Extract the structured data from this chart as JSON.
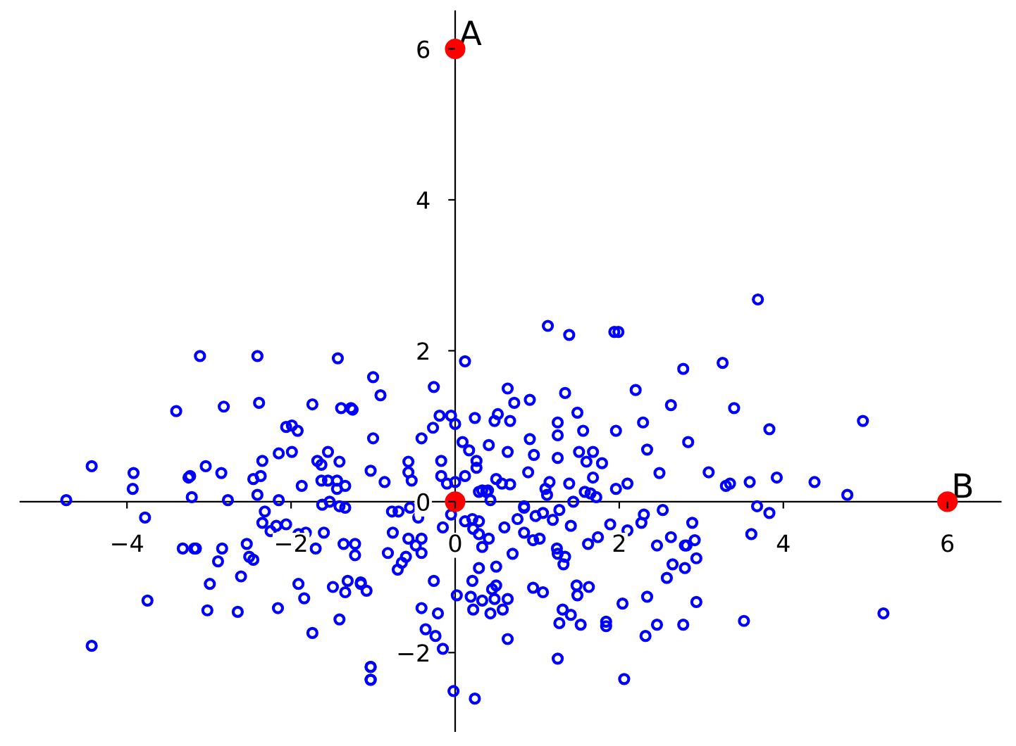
{
  "chart_data": {
    "type": "scatter",
    "xlim": [
      -5.3,
      6.65
    ],
    "ylim": [
      -3.04,
      6.5
    ],
    "xticks": [
      {
        "value": -4,
        "label": "−4"
      },
      {
        "value": -2,
        "label": "−2"
      },
      0,
      2,
      4,
      6
    ],
    "yticks": [
      {
        "value": -2,
        "label": "−2"
      },
      0,
      2,
      4,
      6
    ],
    "grid": false,
    "marker": "circle",
    "annotations": [
      {
        "text": "A",
        "x": 0,
        "y": 6
      },
      {
        "text": "B",
        "x": 6,
        "y": 0
      }
    ],
    "series": [
      {
        "color": "#0000ff",
        "x": [
          -4.74,
          -4.43,
          -3.92,
          -3.93,
          -3.78,
          -3.75,
          -4.43,
          -3.4,
          -3.25,
          -3.21,
          -3.32,
          -3.16,
          -3.11,
          -2.41,
          -1.43,
          -2.82,
          -2.39,
          -1.74,
          -1.39,
          -1.27,
          -2.06,
          -1.99,
          -1.92,
          -3.23,
          -3.04,
          -2.85,
          -2.46,
          -2.37,
          -2.35,
          -2.15,
          -1.99,
          -1.55,
          -2.41,
          -2.15,
          -1.87,
          -1.68,
          -1.63,
          -1.41,
          -1.63,
          -1.55,
          -1.44,
          -1.44,
          -1.34,
          -1.62,
          -1.53,
          -1.41,
          -1.34,
          -2.77,
          -3.18,
          -2.84,
          -2.89,
          -2.54,
          -2.51,
          -2.46,
          -2.99,
          -2.61,
          -3.02,
          -2.65,
          -2.16,
          -1.91,
          -1.84,
          -1.74,
          -1.41,
          -2.32,
          -2.35,
          -2.25,
          -2.18,
          -2.06,
          -1.91,
          -1.82,
          -1.7,
          -1.6,
          -1.36,
          -1.22,
          -1.22,
          -1.49,
          -1.31,
          -1.34,
          -1.15,
          -1.03,
          -1.03,
          -1.0,
          -0.91,
          -1.25,
          -0.26,
          0.12,
          -1.0,
          -0.41,
          -0.27,
          -0.19,
          -0.05,
          0.0,
          -0.57,
          -0.57,
          -0.53,
          -1.03,
          -0.86,
          -0.17,
          -0.17,
          -0.1,
          0.0,
          0.09,
          0.17,
          0.26,
          0.26,
          0.12,
          0.41,
          0.24,
          0.48,
          0.52,
          0.67,
          0.64,
          0.72,
          0.91,
          0.64,
          0.91,
          0.96,
          0.89,
          0.5,
          0.57,
          0.67,
          0.33,
          0.4,
          0.43,
          1.13,
          1.39,
          1.94,
          1.99,
          1.34,
          1.49,
          1.25,
          1.56,
          1.25,
          1.96,
          2.2,
          2.29,
          2.63,
          2.78,
          2.34,
          2.84,
          1.25,
          1.51,
          1.68,
          1.6,
          1.79,
          1.15,
          1.1,
          1.12,
          1.39,
          1.68,
          1.58,
          1.65,
          1.72,
          1.44,
          1.96,
          2.1,
          2.49,
          0.84,
          0.29,
          0.38,
          3.69,
          3.26,
          3.4,
          3.83,
          4.97,
          3.09,
          3.3,
          3.35,
          3.59,
          3.92,
          4.38,
          4.78,
          3.68,
          3.83,
          2.89,
          3.61,
          2.92,
          2.8,
          2.94,
          2.8,
          2.94,
          2.78,
          3.52,
          5.22,
          -0.77,
          -0.69,
          -0.55,
          -0.45,
          -0.76,
          -0.57,
          -0.41,
          -0.48,
          -0.41,
          -0.82,
          -0.6,
          -0.65,
          -0.7,
          -1.15,
          -1.08,
          -0.26,
          -0.41,
          -0.21,
          -0.36,
          -0.24,
          -0.15,
          -0.02,
          0.24,
          -0.15,
          -0.05,
          0.12,
          0.21,
          0.29,
          0.22,
          0.29,
          0.41,
          0.33,
          0.6,
          0.76,
          0.84,
          0.7,
          0.5,
          0.29,
          0.21,
          0.5,
          0.45,
          0.02,
          0.19,
          0.33,
          0.48,
          0.64,
          0.22,
          0.43,
          0.58,
          0.64,
          0.95,
          1.03,
          0.84,
          0.98,
          1.07,
          1.19,
          1.27,
          1.41,
          1.24,
          1.25,
          1.34,
          1.32,
          0.95,
          1.07,
          1.31,
          1.41,
          1.27,
          1.53,
          1.48,
          1.63,
          1.49,
          1.25,
          1.74,
          1.62,
          1.89,
          2.1,
          2.27,
          2.3,
          2.53,
          2.46,
          2.63,
          2.82,
          2.65,
          2.58,
          2.04,
          2.34,
          1.84,
          1.84,
          2.46,
          2.32,
          2.06,
          -1.03,
          -1.03
        ],
        "values": [
          0.02,
          0.47,
          0.38,
          0.17,
          -0.21,
          -1.31,
          -1.91,
          1.2,
          0.32,
          0.06,
          -0.62,
          -0.62,
          1.93,
          1.93,
          1.9,
          1.26,
          1.31,
          1.29,
          1.24,
          1.24,
          0.99,
          1.01,
          0.94,
          0.34,
          0.47,
          0.38,
          0.3,
          0.34,
          0.54,
          0.64,
          0.66,
          0.66,
          0.09,
          0.02,
          0.21,
          0.54,
          0.49,
          0.53,
          0.28,
          0.28,
          0.28,
          0.17,
          0.21,
          -0.04,
          0.0,
          -0.06,
          -0.08,
          0.02,
          -0.62,
          -0.62,
          -0.79,
          -0.56,
          -0.73,
          -0.77,
          -1.09,
          -0.99,
          -1.44,
          -1.46,
          -1.41,
          -1.09,
          -1.28,
          -1.74,
          -1.56,
          -0.13,
          -0.28,
          -0.39,
          -0.32,
          -0.3,
          -0.43,
          -0.41,
          -0.62,
          -0.41,
          -0.56,
          -0.56,
          -0.71,
          -1.13,
          -1.05,
          -1.2,
          -1.07,
          -2.19,
          -2.36,
          1.65,
          1.41,
          1.22,
          1.52,
          1.86,
          0.84,
          0.84,
          0.98,
          1.14,
          1.14,
          1.03,
          0.53,
          0.39,
          0.28,
          0.41,
          0.26,
          0.54,
          0.34,
          0.24,
          0.26,
          0.79,
          0.68,
          0.54,
          0.45,
          0.34,
          0.75,
          1.11,
          1.07,
          1.16,
          1.07,
          1.5,
          1.31,
          1.35,
          0.66,
          0.83,
          0.62,
          0.39,
          0.3,
          0.24,
          0.23,
          0.15,
          0.15,
          0.02,
          2.33,
          2.21,
          2.25,
          2.25,
          1.44,
          1.18,
          1.05,
          0.94,
          0.88,
          0.94,
          1.48,
          1.05,
          1.28,
          1.76,
          0.69,
          0.79,
          0.58,
          0.66,
          0.66,
          0.53,
          0.51,
          0.26,
          0.17,
          0.09,
          0.24,
          0.32,
          0.13,
          0.11,
          0.06,
          0.0,
          0.17,
          0.24,
          0.38,
          -0.06,
          0.13,
          0.13,
          2.68,
          1.84,
          1.24,
          0.96,
          1.07,
          0.39,
          0.21,
          0.24,
          0.26,
          0.32,
          0.26,
          0.09,
          -0.06,
          -0.15,
          -0.28,
          -0.43,
          -0.51,
          -0.58,
          -0.75,
          -0.88,
          -1.33,
          -1.63,
          -1.58,
          -1.48,
          -0.13,
          -0.13,
          -0.08,
          -0.21,
          -0.41,
          -0.49,
          -0.49,
          -0.58,
          -0.68,
          -0.68,
          -0.73,
          -0.81,
          -0.9,
          -1.09,
          -1.18,
          -1.05,
          -1.41,
          -1.48,
          -1.69,
          -1.78,
          -1.95,
          -2.51,
          -2.61,
          -0.34,
          -0.17,
          -0.26,
          -0.23,
          -0.26,
          -0.36,
          -0.43,
          -0.49,
          -0.6,
          -0.34,
          -0.23,
          -0.41,
          -0.69,
          -0.86,
          -0.88,
          -1.05,
          -1.11,
          -1.16,
          -1.24,
          -1.26,
          -1.31,
          -1.29,
          -1.29,
          -1.43,
          -1.48,
          -1.43,
          -1.82,
          -0.51,
          -0.49,
          -0.08,
          -0.19,
          -0.15,
          -0.24,
          -0.11,
          -0.32,
          -0.62,
          -0.69,
          -0.73,
          -0.83,
          -1.14,
          -1.2,
          -1.43,
          -1.5,
          -1.61,
          -1.63,
          -1.11,
          -1.13,
          -1.24,
          -2.08,
          -0.47,
          -0.56,
          -0.3,
          -0.38,
          -0.28,
          -0.17,
          -0.11,
          -0.58,
          -0.47,
          -0.58,
          -0.83,
          -1.01,
          -1.35,
          -1.26,
          -1.59,
          -1.65,
          -1.63,
          -1.78,
          -2.35,
          -2.19,
          -2.36
        ]
      },
      {
        "color": "#ff0000",
        "x": [
          0,
          6,
          0
        ],
        "values": [
          6,
          0,
          0
        ]
      }
    ]
  }
}
